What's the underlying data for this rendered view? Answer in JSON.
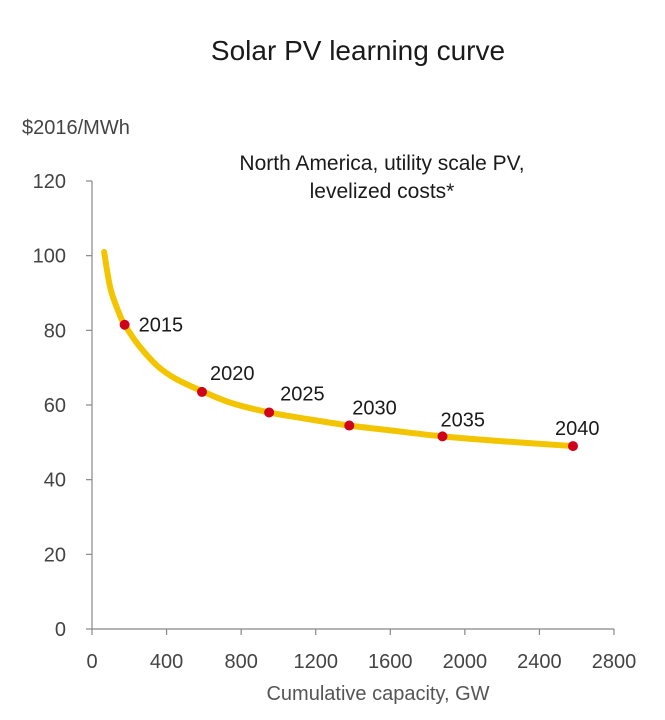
{
  "chart_data": {
    "type": "line",
    "title": "Solar PV learning curve",
    "subtitle": "North America, utility scale PV, levelized costs*",
    "subtitle_lines": [
      "North America, utility scale PV,",
      "levelized costs*"
    ],
    "ylabel": "$2016/MWh",
    "xlabel": "Cumulative capacity, GW",
    "xlim": [
      0,
      2800
    ],
    "ylim": [
      0,
      120
    ],
    "x_ticks": [
      0,
      400,
      800,
      1200,
      1600,
      2000,
      2400,
      2800
    ],
    "y_ticks": [
      0,
      20,
      40,
      60,
      80,
      100,
      120
    ],
    "series": [
      {
        "color": "#f2c500",
        "x": [
          65,
          100,
          150,
          175,
          250,
          350,
          450,
          600,
          750,
          950,
          1150,
          1380,
          1600,
          1880,
          2200,
          2580
        ],
        "y": [
          101,
          91,
          84,
          81.5,
          76,
          70.5,
          67,
          63.5,
          60.5,
          58,
          56.3,
          54.5,
          53.2,
          51.6,
          50.3,
          49
        ]
      }
    ],
    "points": [
      {
        "label": "2015",
        "x": 175,
        "y": 81.5
      },
      {
        "label": "2020",
        "x": 590,
        "y": 63.5
      },
      {
        "label": "2025",
        "x": 950,
        "y": 58
      },
      {
        "label": "2030",
        "x": 1380,
        "y": 54.5
      },
      {
        "label": "2035",
        "x": 1880,
        "y": 51.6
      },
      {
        "label": "2040",
        "x": 2580,
        "y": 49
      }
    ],
    "point_color": "#d0021b",
    "axis_color": "#888888",
    "grid": false
  }
}
